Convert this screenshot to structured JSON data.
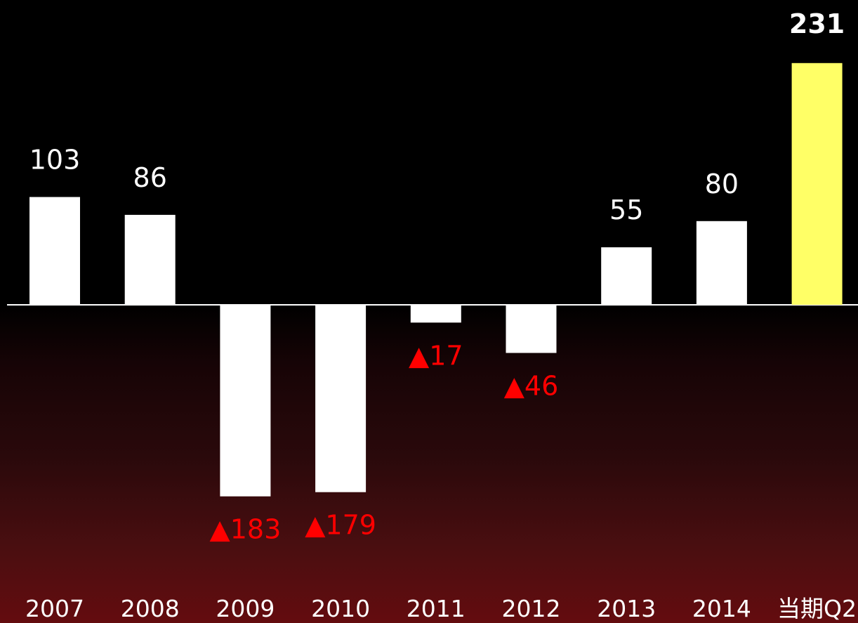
{
  "chart_data": {
    "type": "bar",
    "title": "",
    "xlabel": "",
    "ylabel": "",
    "categories": [
      "2007",
      "2008",
      "2009",
      "2010",
      "2011",
      "2012",
      "2013",
      "2014",
      "当期Q2"
    ],
    "values": [
      103,
      86,
      -183,
      -179,
      -17,
      -46,
      55,
      80,
      231
    ],
    "value_labels": [
      "103",
      "86",
      "▲183",
      "▲179",
      "▲17",
      "▲46",
      "55",
      "80",
      "231"
    ],
    "highlight_index": 8,
    "ylim": [
      -183,
      231
    ],
    "grid": false,
    "legend": "none",
    "colors": {
      "bar": "#ffffff",
      "highlight_bar": "#ffff66",
      "negative_label": "#ff0000",
      "positive_label": "#ffffff",
      "axis": "#ffffff"
    }
  }
}
